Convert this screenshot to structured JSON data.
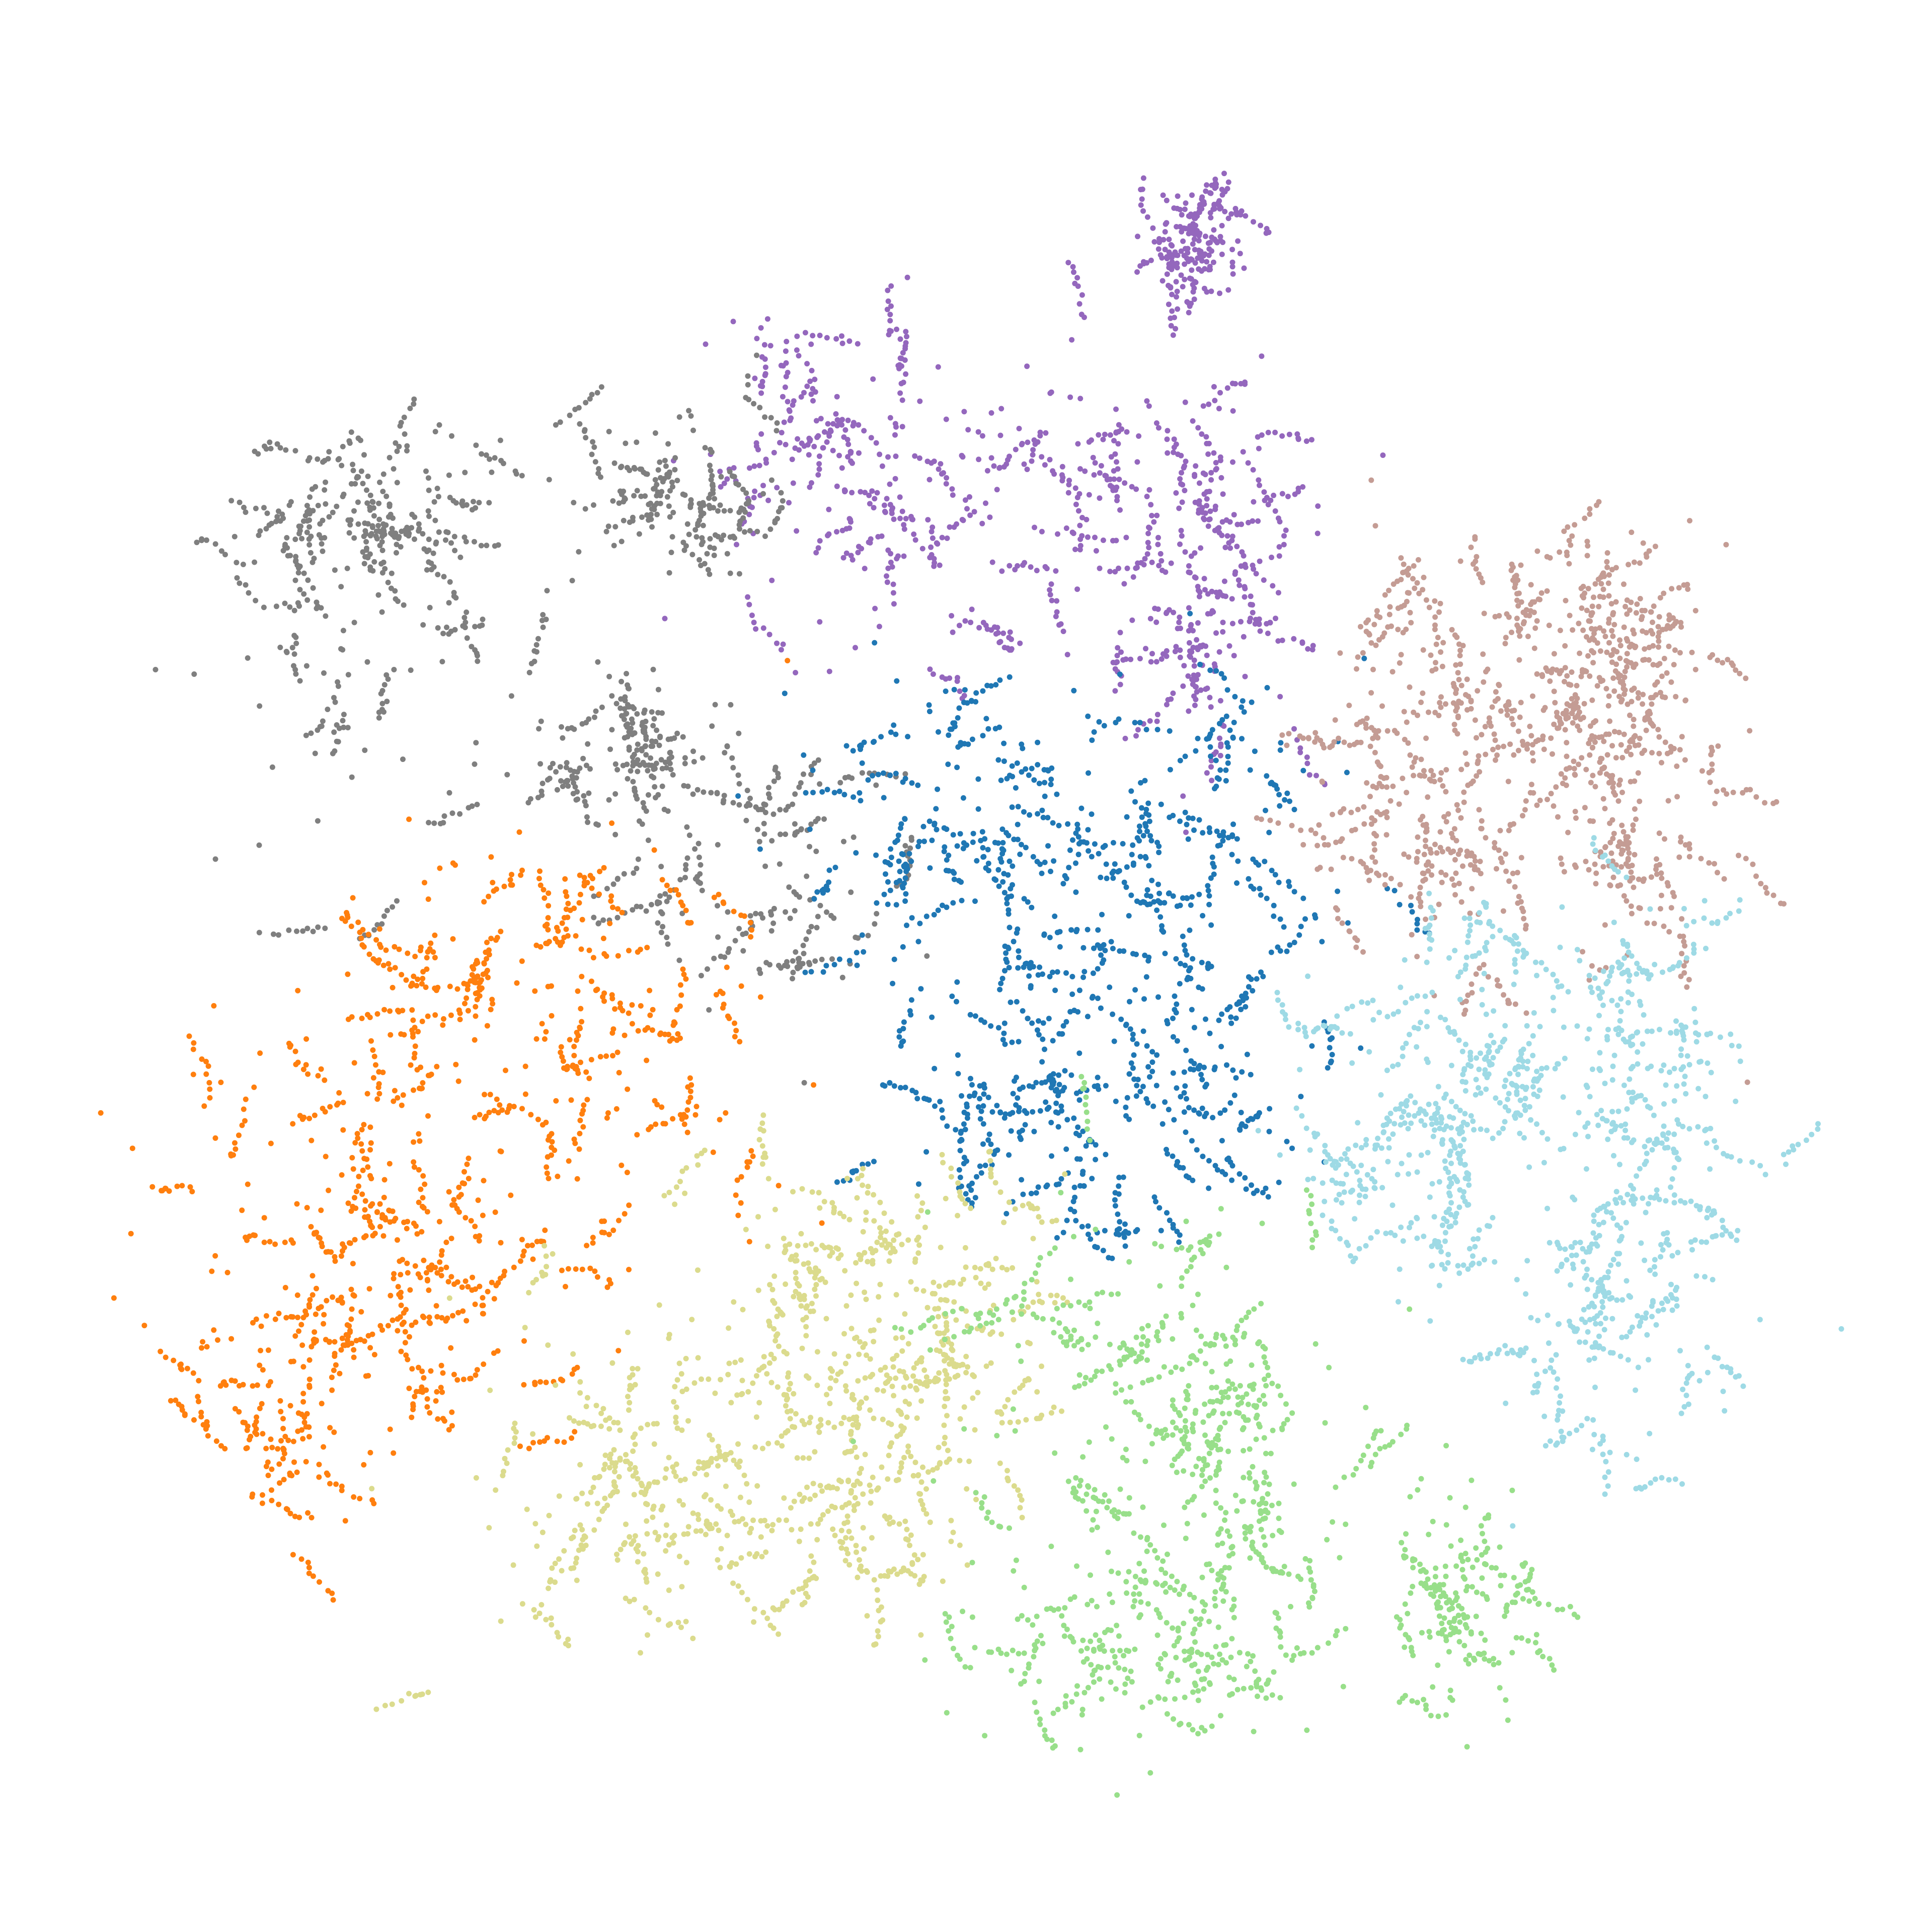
{
  "chart_data": {
    "type": "scatter",
    "title": "",
    "xlabel": "",
    "ylabel": "",
    "axes_visible": false,
    "grid": false,
    "legend": "none",
    "xlim": [
      0,
      100
    ],
    "ylim": [
      0,
      100
    ],
    "point_count_per_cluster_approx": 900,
    "series": [
      {
        "color": "#9467bd",
        "centers": [
          [
            42,
            80
          ],
          [
            50,
            75
          ],
          [
            58,
            79
          ],
          [
            64,
            70
          ],
          [
            63,
            92
          ]
        ],
        "spread": [
          [
            4.5,
            3.5
          ],
          [
            6,
            4
          ],
          [
            7,
            3
          ],
          [
            2.5,
            4
          ],
          [
            1.2,
            1.5
          ]
        ]
      },
      {
        "color": "#7f7f7f",
        "centers": [
          [
            12,
            67
          ],
          [
            30,
            63
          ],
          [
            33,
            77
          ],
          [
            17,
            76
          ],
          [
            38,
            55
          ]
        ],
        "spread": [
          [
            4,
            6
          ],
          [
            4,
            3
          ],
          [
            3,
            3
          ],
          [
            3,
            3
          ],
          [
            4,
            4
          ]
        ]
      },
      {
        "color": "#ff7f0e",
        "centers": [
          [
            13,
            38
          ],
          [
            20,
            48
          ],
          [
            30,
            46
          ],
          [
            20,
            30
          ],
          [
            12,
            26
          ]
        ],
        "spread": [
          [
            5,
            6
          ],
          [
            5,
            4
          ],
          [
            5,
            5
          ],
          [
            4,
            4
          ],
          [
            4,
            4
          ]
        ]
      },
      {
        "color": "#1f77b4",
        "centers": [
          [
            53,
            52
          ],
          [
            60,
            44
          ],
          [
            64,
            57
          ],
          [
            48,
            60
          ],
          [
            58,
            40
          ]
        ],
        "spread": [
          [
            6,
            5
          ],
          [
            6,
            4
          ],
          [
            5,
            5
          ],
          [
            5,
            4
          ],
          [
            6,
            3
          ]
        ]
      },
      {
        "color": "#c49c94",
        "centers": [
          [
            84,
            62
          ],
          [
            80,
            66
          ],
          [
            88,
            58
          ],
          [
            76,
            58
          ],
          [
            87,
            70
          ]
        ],
        "spread": [
          [
            5,
            6
          ],
          [
            4,
            4
          ],
          [
            3,
            5
          ],
          [
            3,
            4
          ],
          [
            3,
            3
          ]
        ]
      },
      {
        "color": "#9edae5",
        "centers": [
          [
            86,
            38
          ],
          [
            82,
            46
          ],
          [
            88,
            29
          ],
          [
            76,
            37
          ],
          [
            90,
            44
          ]
        ],
        "spread": [
          [
            5,
            7
          ],
          [
            5,
            4
          ],
          [
            4,
            5
          ],
          [
            3,
            4
          ],
          [
            3,
            4
          ]
        ]
      },
      {
        "color": "#dbdb8d",
        "centers": [
          [
            34,
            24
          ],
          [
            30,
            16
          ],
          [
            44,
            20
          ],
          [
            42,
            31
          ],
          [
            50,
            28
          ]
        ],
        "spread": [
          [
            6,
            5
          ],
          [
            5,
            3
          ],
          [
            4,
            4
          ],
          [
            4,
            4
          ],
          [
            3,
            4
          ]
        ]
      },
      {
        "color": "#98df8a",
        "centers": [
          [
            62,
            16
          ],
          [
            60,
            28
          ],
          [
            66,
            21
          ],
          [
            58,
            9
          ],
          [
            79,
            13
          ]
        ],
        "spread": [
          [
            5,
            5
          ],
          [
            5,
            4
          ],
          [
            4,
            5
          ],
          [
            5,
            3
          ],
          [
            2,
            4
          ]
        ]
      }
    ]
  }
}
